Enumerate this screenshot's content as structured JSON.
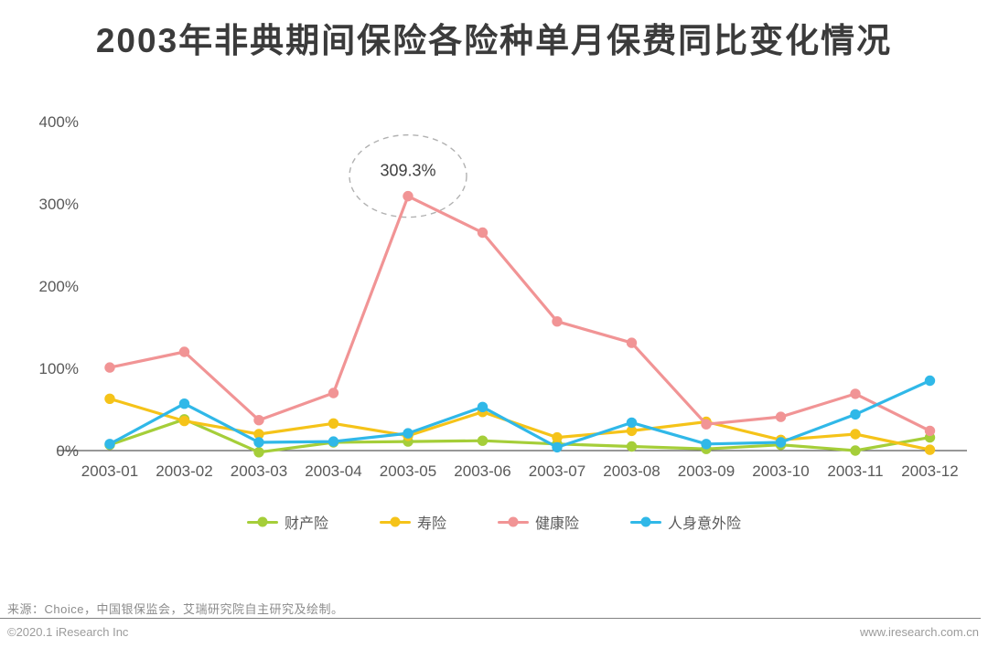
{
  "title": "2003年非典期间保险各险种单月保费同比变化情况",
  "chart_data": {
    "type": "line",
    "x": [
      "2003-01",
      "2003-02",
      "2003-03",
      "2003-04",
      "2003-05",
      "2003-06",
      "2003-07",
      "2003-08",
      "2003-09",
      "2003-10",
      "2003-11",
      "2003-12"
    ],
    "series": [
      {
        "name": "财产险",
        "color": "#a5ce39",
        "values": [
          7,
          38,
          -2,
          10,
          11,
          12,
          8,
          5,
          2,
          7,
          0,
          16
        ]
      },
      {
        "name": "寿险",
        "color": "#f5c319",
        "values": [
          63,
          36,
          20,
          33,
          18,
          47,
          16,
          24,
          35,
          13,
          20,
          1
        ]
      },
      {
        "name": "健康险",
        "color": "#f19495",
        "values": [
          101,
          120,
          37,
          70,
          309.3,
          265,
          157,
          131,
          32,
          41,
          69,
          24
        ]
      },
      {
        "name": "人身意外险",
        "color": "#30b8e8",
        "values": [
          8,
          57,
          10,
          11,
          21,
          53,
          4,
          34,
          8,
          10,
          44,
          85
        ]
      }
    ],
    "ylim": [
      0,
      400
    ],
    "yticks": [
      0,
      100,
      200,
      300,
      400
    ],
    "ytick_labels": [
      "0%",
      "100%",
      "200%",
      "300%",
      "400%"
    ],
    "grid": false,
    "legend_position": "bottom",
    "annotation": {
      "label": "309.3%",
      "series": "健康险",
      "x": "2003-05",
      "value": 309.3
    }
  },
  "footer": {
    "source": "来源：Choice，中国银保监会，艾瑞研究院自主研究及绘制。",
    "copyright": "©2020.1  iResearch Inc",
    "website": "www.iresearch.com.cn"
  }
}
